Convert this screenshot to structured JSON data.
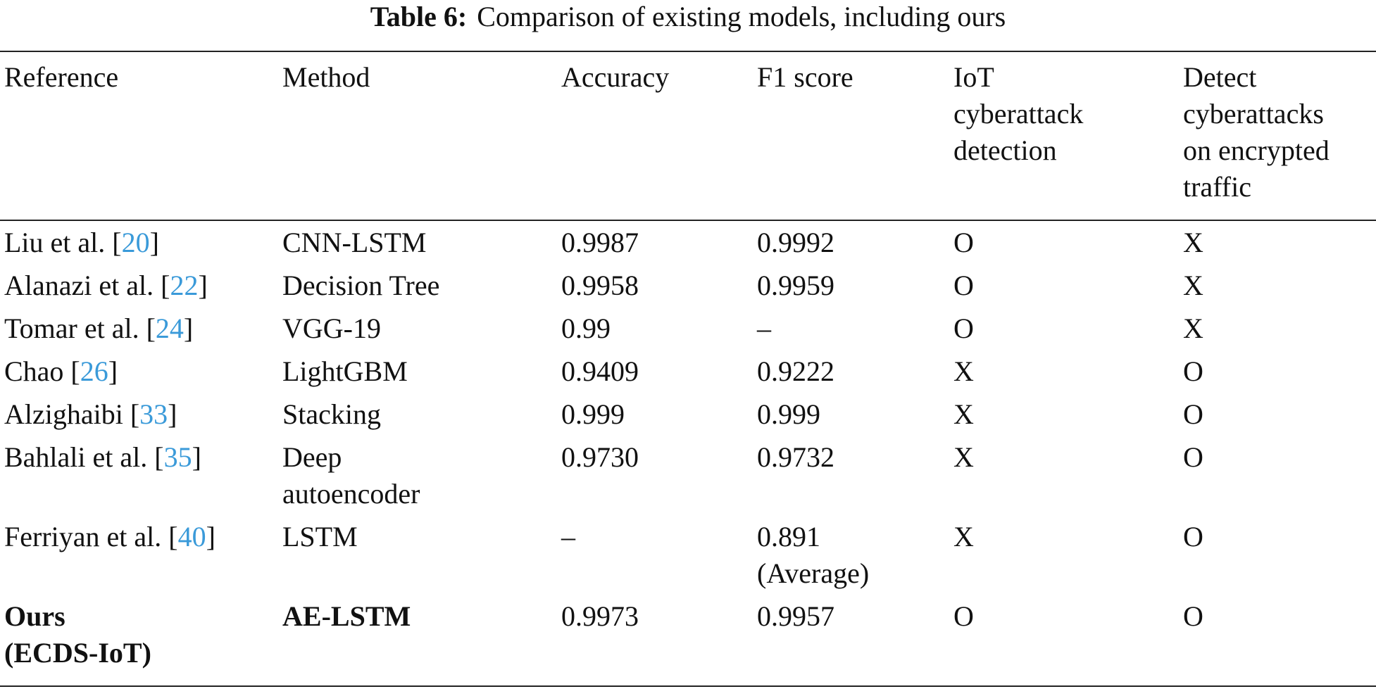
{
  "caption": {
    "label": "Table 6:",
    "text": "Comparison of existing models, including ours"
  },
  "table": {
    "header": [
      [
        "Reference"
      ],
      [
        "Method"
      ],
      [
        "Accuracy"
      ],
      [
        "F1 score"
      ],
      [
        "IoT",
        "cyberattack",
        "detection"
      ],
      [
        "Detect",
        "cyberattacks",
        "on encrypted",
        "traffic"
      ]
    ],
    "rows": [
      {
        "reference": {
          "text": "Liu et al. [",
          "cite": "20",
          "close": "]"
        },
        "method": [
          "CNN-LSTM"
        ],
        "accuracy": [
          "0.9987"
        ],
        "f1": [
          "0.9992"
        ],
        "iot": [
          "O"
        ],
        "encrypted": [
          "X"
        ]
      },
      {
        "reference": {
          "text": "Alanazi et al. [",
          "cite": "22",
          "close": "]"
        },
        "method": [
          "Decision Tree"
        ],
        "accuracy": [
          "0.9958"
        ],
        "f1": [
          "0.9959"
        ],
        "iot": [
          "O"
        ],
        "encrypted": [
          "X"
        ]
      },
      {
        "reference": {
          "text": "Tomar et al. [",
          "cite": "24",
          "close": "]"
        },
        "method": [
          "VGG-19"
        ],
        "accuracy": [
          "0.99"
        ],
        "f1": [
          "–"
        ],
        "iot": [
          "O"
        ],
        "encrypted": [
          "X"
        ]
      },
      {
        "reference": {
          "text": "Chao [",
          "cite": "26",
          "close": "]"
        },
        "method": [
          "LightGBM"
        ],
        "accuracy": [
          "0.9409"
        ],
        "f1": [
          "0.9222"
        ],
        "iot": [
          "X"
        ],
        "encrypted": [
          "O"
        ]
      },
      {
        "reference": {
          "text": "Alzighaibi [",
          "cite": "33",
          "close": "]"
        },
        "method": [
          "Stacking"
        ],
        "accuracy": [
          "0.999"
        ],
        "f1": [
          "0.999"
        ],
        "iot": [
          "X"
        ],
        "encrypted": [
          "O"
        ]
      },
      {
        "reference": {
          "text": "Bahlali et al. [",
          "cite": "35",
          "close": "]"
        },
        "method": [
          "Deep",
          "autoencoder"
        ],
        "accuracy": [
          "0.9730"
        ],
        "f1": [
          "0.9732"
        ],
        "iot": [
          "X"
        ],
        "encrypted": [
          "O"
        ]
      },
      {
        "reference": {
          "text": "Ferriyan et al. [",
          "cite": "40",
          "close": "]"
        },
        "method": [
          "LSTM"
        ],
        "accuracy": [
          "–"
        ],
        "f1": [
          "0.891",
          "(Average)"
        ],
        "iot": [
          "X"
        ],
        "encrypted": [
          "O"
        ]
      },
      {
        "reference": {
          "lines": [
            "Ours",
            "(ECDS-IoT)"
          ]
        },
        "method": [
          "AE-LSTM"
        ],
        "accuracy": [
          "0.9973"
        ],
        "f1": [
          "0.9957"
        ],
        "iot": [
          "O"
        ],
        "encrypted": [
          "O"
        ],
        "bold": true
      }
    ]
  }
}
